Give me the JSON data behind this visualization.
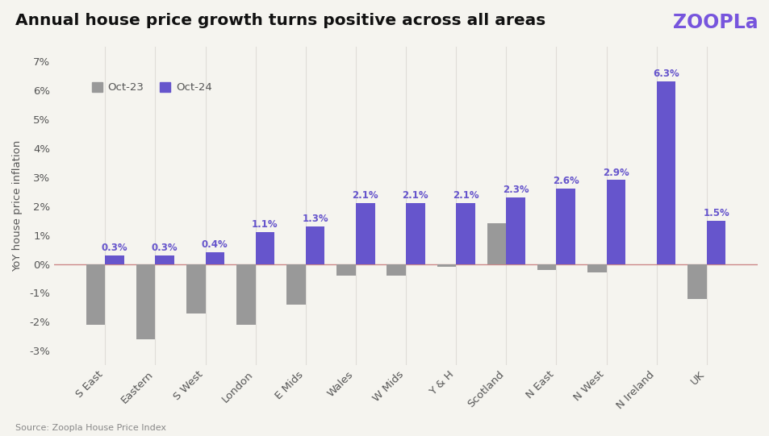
{
  "title": "Annual house price growth turns positive across all areas",
  "ylabel": "YoY house price inflation",
  "source": "Source: Zoopla House Price Index",
  "categories": [
    "S East",
    "Eastern",
    "S West",
    "London",
    "E Mids",
    "Wales",
    "W Mids",
    "Y & H",
    "Scotland",
    "N East",
    "N West",
    "N Ireland",
    "UK"
  ],
  "oct23_values": [
    -2.1,
    -2.6,
    -1.7,
    -2.1,
    -1.4,
    -0.4,
    -0.4,
    -0.1,
    1.4,
    -0.2,
    -0.3,
    0.0,
    -1.2
  ],
  "oct24_values": [
    0.3,
    0.3,
    0.4,
    1.1,
    1.3,
    2.1,
    2.1,
    2.1,
    2.3,
    2.6,
    2.9,
    6.3,
    1.5
  ],
  "oct23_color": "#999999",
  "oct24_color": "#6655cc",
  "background_color": "#f5f4ef",
  "title_fontsize": 14.5,
  "label_fontsize": 9.5,
  "tick_fontsize": 9.5,
  "ylim": [
    -3.5,
    7.5
  ],
  "yticks": [
    -3,
    -2,
    -1,
    0,
    1,
    2,
    3,
    4,
    5,
    6,
    7
  ],
  "bar_width": 0.38,
  "legend_labels": [
    "Oct-23",
    "Oct-24"
  ],
  "zoopla_color": "#7755dd",
  "zero_line_color": "#cc8888",
  "grid_color": "#e0ddd8",
  "value_label_fontsize": 8.5
}
